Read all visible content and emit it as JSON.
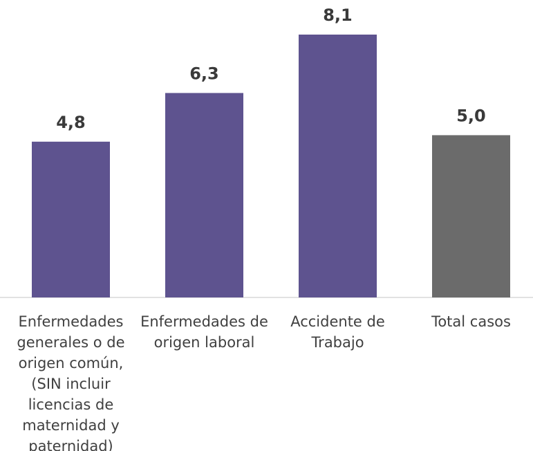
{
  "chart_data": {
    "type": "bar",
    "categories": [
      "Enfermedades generales o de origen común, (SIN incluir licencias de maternidad y paternidad)",
      "Enfermedades de origen laboral",
      "Accidente de Trabajo",
      "Total casos"
    ],
    "values": [
      4.8,
      6.3,
      8.1,
      5.0
    ],
    "value_labels": [
      "4,8",
      "6,3",
      "8,1",
      "5,0"
    ],
    "colors": [
      "#5e538f",
      "#5e538f",
      "#5e538f",
      "#6b6b6b"
    ]
  }
}
